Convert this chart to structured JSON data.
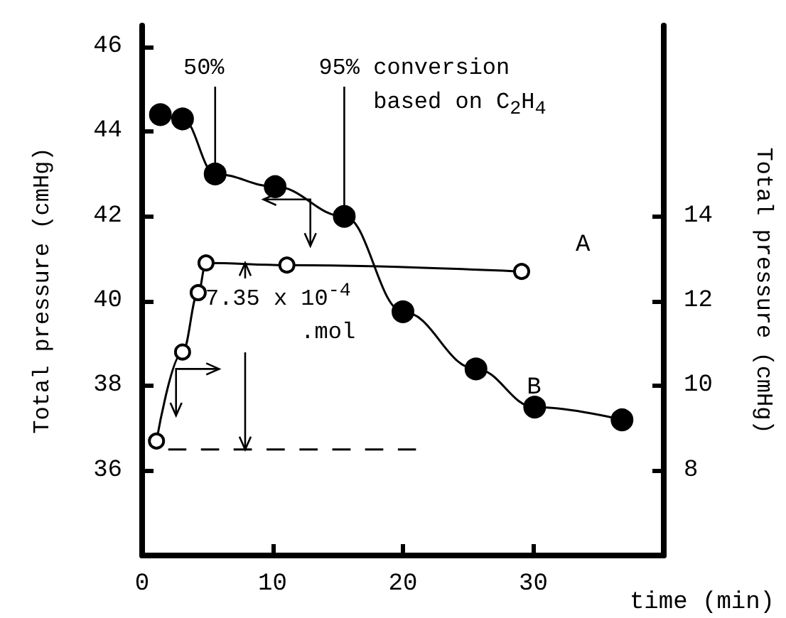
{
  "chart_data": {
    "type": "line",
    "xlabel": "time (min)",
    "ylabel": "Total pressure (cmHg)",
    "y2label": "Total pressure (cmHg)",
    "xlim": [
      0,
      40
    ],
    "xticks": [
      0,
      10,
      20,
      30
    ],
    "ylim": [
      34,
      46.5
    ],
    "yticks": [
      36,
      38,
      40,
      42,
      44,
      46
    ],
    "y2lim": [
      6,
      18.5
    ],
    "y2ticks": [
      8,
      10,
      12,
      14
    ],
    "grid": false,
    "legend": false,
    "marker": "circle",
    "series": [
      {
        "name": "A",
        "color": "#000000",
        "axis": "y2",
        "line_style": "solid",
        "x": [
          1.1,
          3.1,
          4.3,
          4.9,
          11.1,
          29.1
        ],
        "values": [
          8.7,
          10.8,
          12.2,
          12.9,
          12.85,
          12.7
        ]
      },
      {
        "name": "B",
        "color": "#000000",
        "line_style": "solid",
        "x": [
          1.4,
          3.1,
          5.6,
          10.2,
          15.5,
          20.0,
          25.6,
          30.1,
          36.8
        ],
        "values": [
          44.4,
          44.3,
          43.0,
          42.7,
          42.0,
          39.75,
          38.4,
          37.5,
          37.2
        ]
      },
      {
        "type": "line",
        "color": "#000000",
        "axis": "y2",
        "marker": "none",
        "line_style": "dashed",
        "x": [
          2,
          21
        ],
        "values": [
          8.5,
          8.5
        ]
      }
    ],
    "annotations": [
      {
        "text": "50%",
        "x": 5.6,
        "y": 43.0
      },
      {
        "text": "95% conversion\n    based on C$_{2}$H$_{4}$",
        "x": 15.5,
        "y": 42.0
      },
      {
        "text": "7.35 x 10$^{-4}$\n       .mol",
        "x": 7.9,
        "y": 36.5
      }
    ]
  }
}
